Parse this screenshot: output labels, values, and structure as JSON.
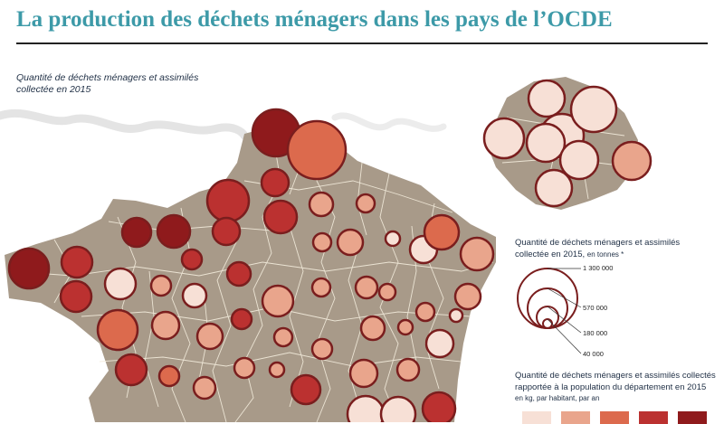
{
  "title": "La production des déchets ménagers dans les pays de l’OCDE",
  "subtitle": "Quantité de déchets ménagers et assimilés collectée en 2015",
  "legend_size": {
    "title": "Quantité de déchets ménagers et assimilés collectée en 2015,",
    "unit": "en tonnes *",
    "entries": [
      {
        "label": "1 300 000",
        "value": 1300000
      },
      {
        "label": "570 000",
        "value": 570000
      },
      {
        "label": "180 000",
        "value": 180000
      },
      {
        "label": "40 000",
        "value": 40000
      }
    ]
  },
  "legend_color": {
    "title": "Quantité de déchets ménagers et assimilés collectés rapportée à la population du département en 2015",
    "unit": "en kg, par habitant, par an",
    "classes": [
      "#f7e0d6",
      "#e9a58c",
      "#dc6a4d",
      "#bb3130",
      "#8f1a1c"
    ]
  },
  "colors": {
    "land": "#a89a89",
    "boundary": "#f3ecdc",
    "bubble_stroke": "#7a1e1e",
    "title": "#3d9aa8"
  }
}
